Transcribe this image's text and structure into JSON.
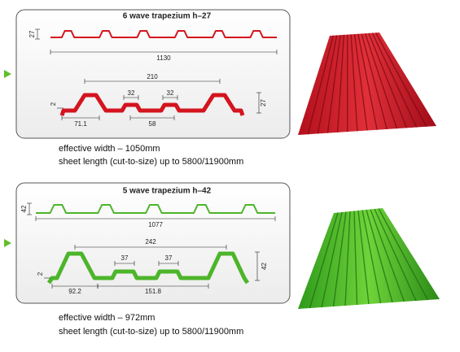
{
  "panels": [
    {
      "title": "6 wave trapezium h–27",
      "dimensions": {
        "height_small": "27",
        "overall_width": "1130",
        "pitch": "210",
        "rib_left": "32",
        "rib_right": "32",
        "height": "27",
        "thickness": "2",
        "edge": "71.1",
        "valley": "58"
      },
      "effective_width": "effective width – 1050mm",
      "sheet_length": "sheet length (cut-to-size) up to  5800/11900mm"
    },
    {
      "title": "5 wave trapezium h–42",
      "dimensions": {
        "height_small": "42",
        "overall_width": "1077",
        "pitch": "242",
        "rib_left": "37",
        "rib_right": "37",
        "height": "42",
        "thickness": "2",
        "edge": "92.2",
        "valley": "151.8"
      },
      "effective_width": "effective width – 972mm",
      "sheet_length": "sheet length (cut-to-size) up to  5800/11900mm"
    }
  ]
}
